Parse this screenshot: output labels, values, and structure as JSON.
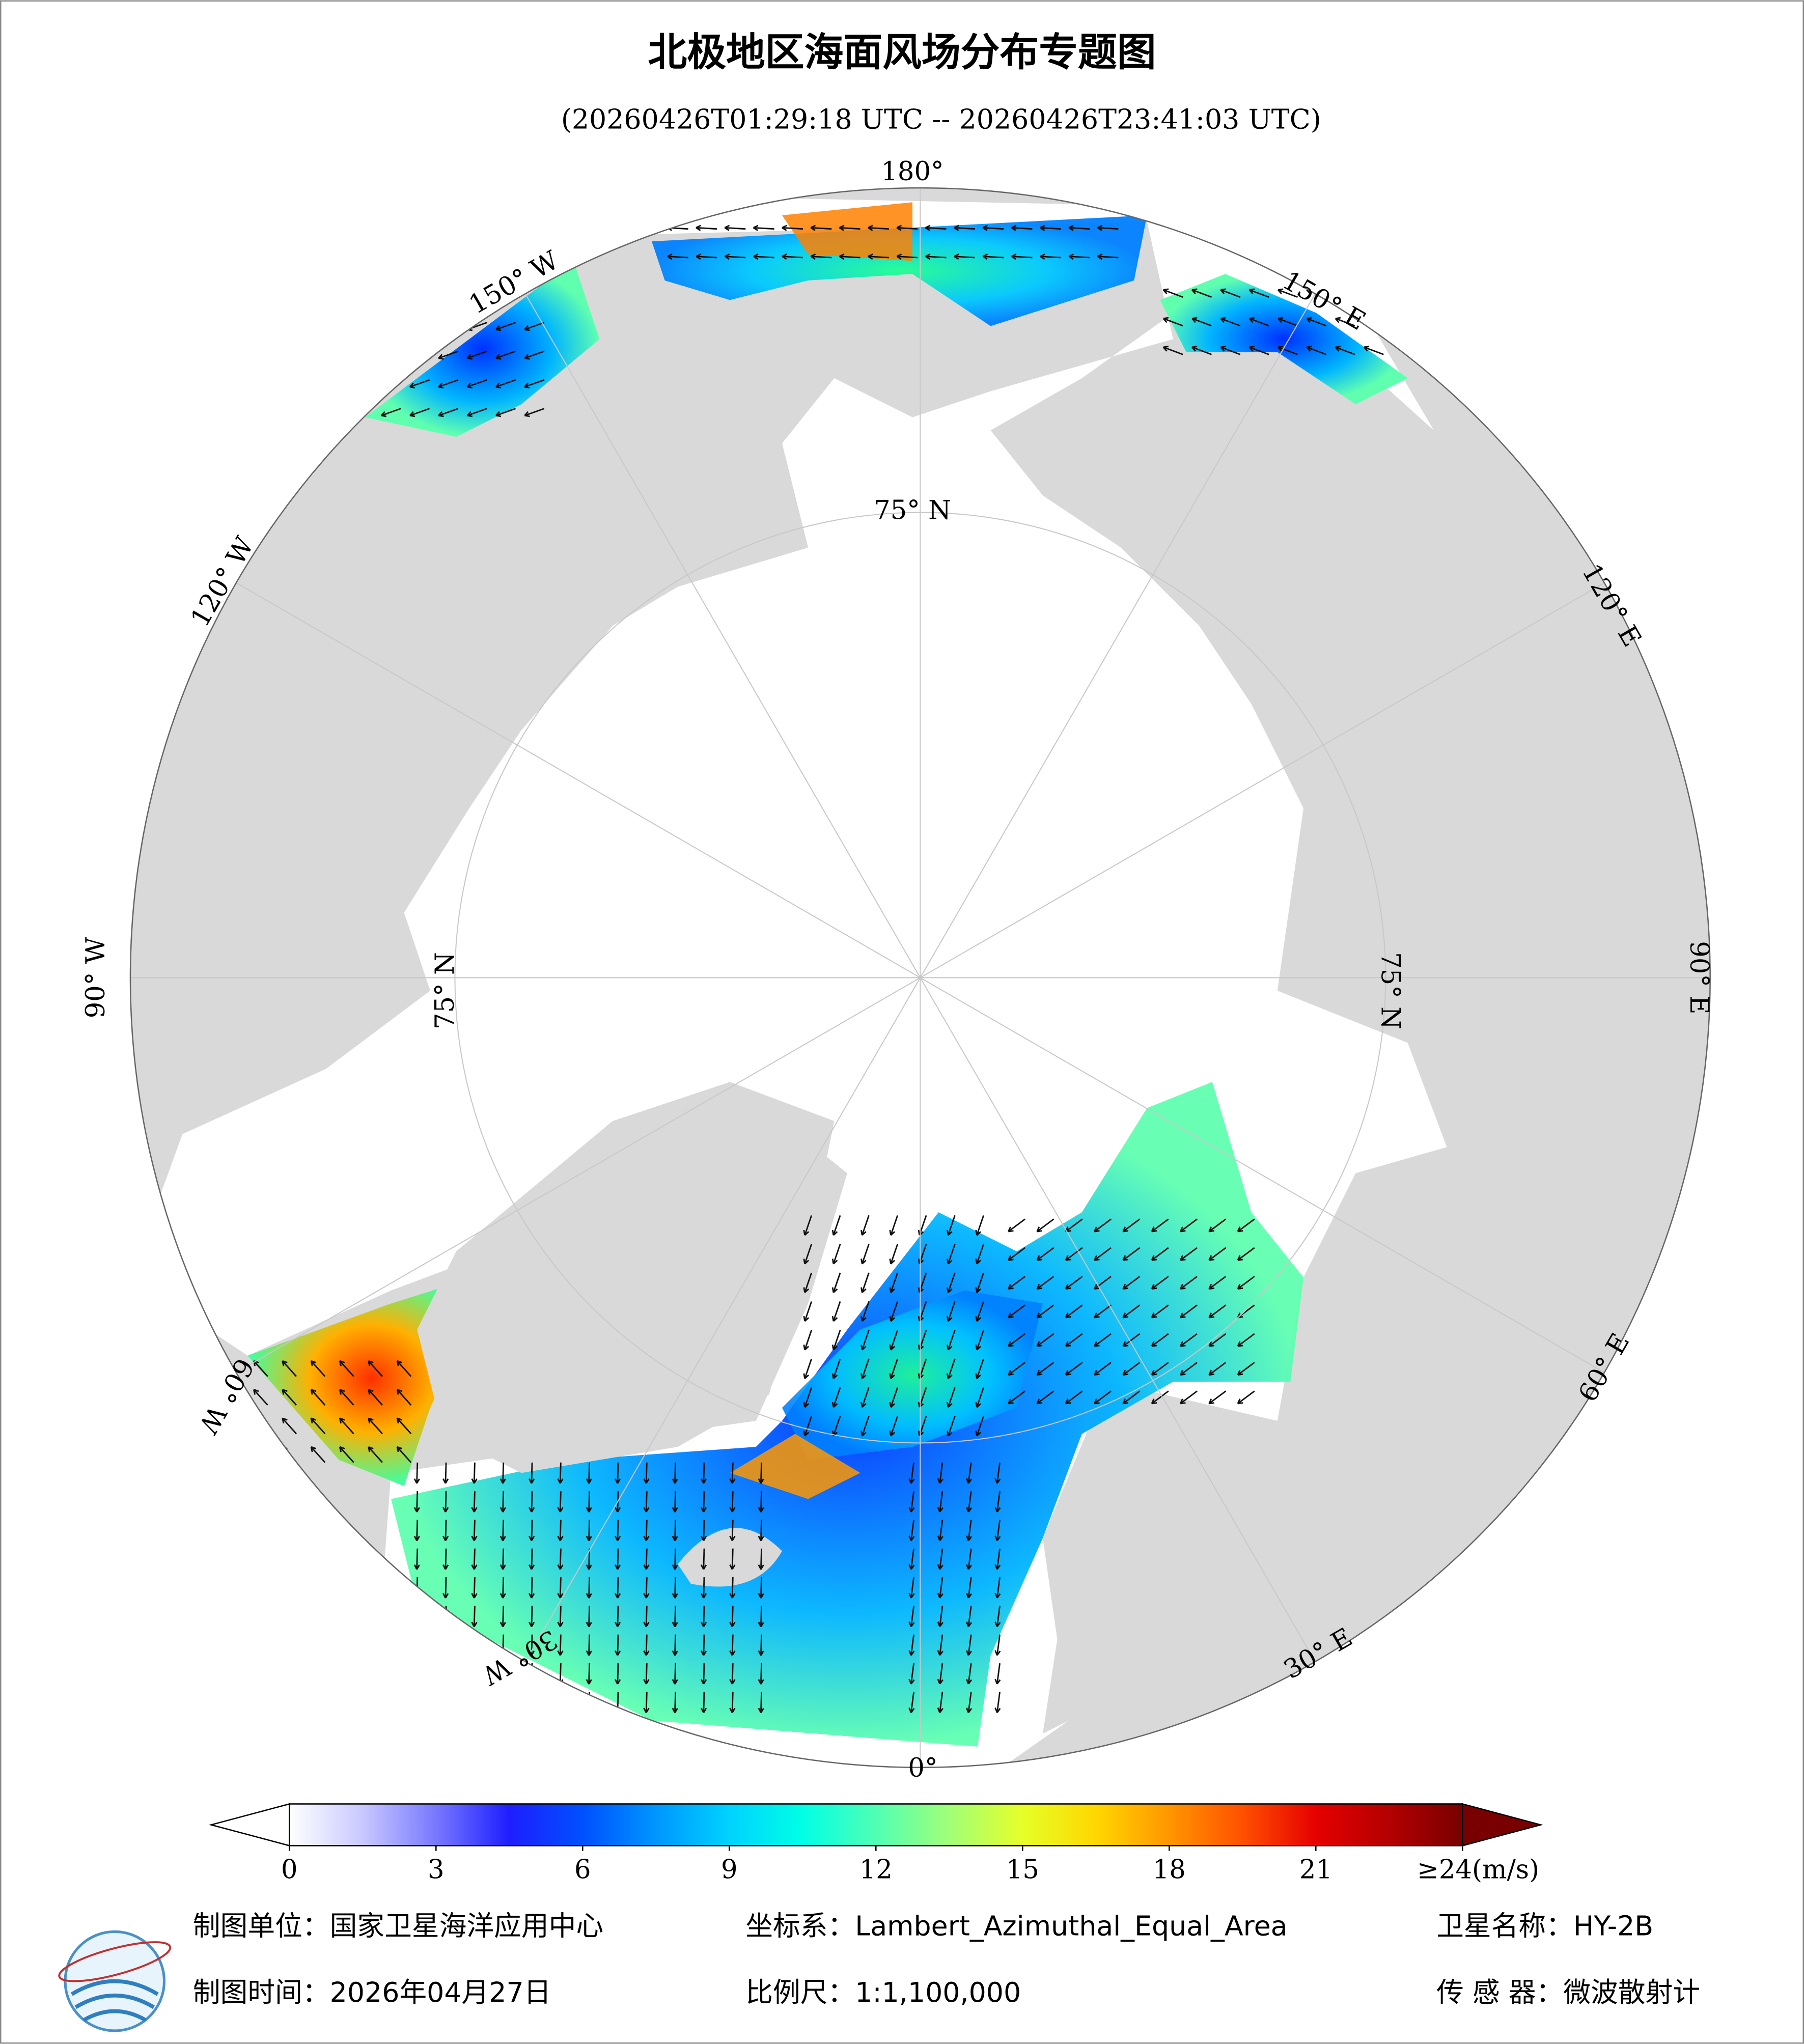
{
  "header": {
    "title": "北极地区海面风场分布专题图",
    "subtitle": "(20260426T01:29:18 UTC -- 20260426T23:41:03 UTC)"
  },
  "map": {
    "lon_labels": [
      "180°",
      "150° W",
      "150° E",
      "120° W",
      "120° E",
      "90° W",
      "90° E",
      "60° W",
      "60° E",
      "30° W",
      "30° E",
      "0°"
    ],
    "lat_labels": [
      "75° N",
      "75° N",
      "75° N"
    ]
  },
  "colorbar": {
    "lim": [
      0,
      24
    ],
    "ticks": [
      0,
      3,
      6,
      9,
      12,
      15,
      18,
      21,
      {
        "value": 24,
        "label": "≥24(m/s)"
      }
    ],
    "colors": [
      "#ffffff",
      "#c8c8ff",
      "#7878ff",
      "#1e1eff",
      "#0050ff",
      "#0096ff",
      "#00d2ff",
      "#00ffe6",
      "#50ffb4",
      "#a0ff78",
      "#e6ff28",
      "#ffd700",
      "#ff9600",
      "#ff5000",
      "#e60000",
      "#b40000",
      "#780000"
    ],
    "under_color": "#ffffff",
    "over_color": "#780000"
  },
  "footer": {
    "unit": "制图单位：国家卫星海洋应用中心",
    "crs": "坐标系：Lambert_Azimuthal_Equal_Area",
    "satellite": "卫星名称：HY-2B",
    "date": "制图时间：2026年04月27日",
    "scale": "比例尺：1:1,100,000",
    "sensor": "传 感 器：微波散射计"
  }
}
